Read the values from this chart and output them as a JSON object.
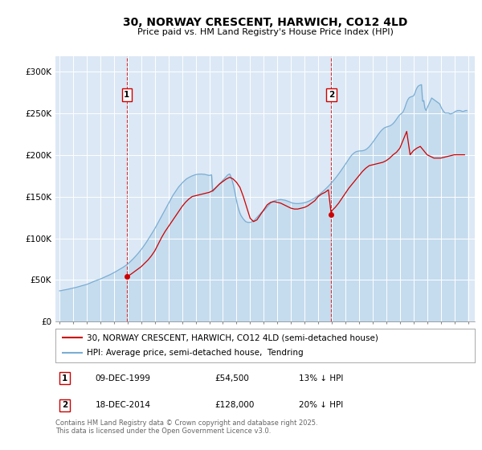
{
  "title": "30, NORWAY CRESCENT, HARWICH, CO12 4LD",
  "subtitle": "Price paid vs. HM Land Registry's House Price Index (HPI)",
  "background_color": "#ffffff",
  "plot_bg_color": "#dce8f5",
  "yticks": [
    0,
    50000,
    100000,
    150000,
    200000,
    250000,
    300000
  ],
  "ytick_labels": [
    "£0",
    "£50K",
    "£100K",
    "£150K",
    "£200K",
    "£250K",
    "£300K"
  ],
  "xlim_start": 1994.7,
  "xlim_end": 2025.5,
  "ylim": [
    0,
    318000
  ],
  "sale1_date": 1999.94,
  "sale1_price": 54500,
  "sale2_date": 2014.96,
  "sale2_price": 128000,
  "vline1_x": 1999.94,
  "vline2_x": 2014.96,
  "red_color": "#cc0000",
  "blue_color": "#7aadd4",
  "blue_fill": "#c5dcee",
  "legend_entry1": "30, NORWAY CRESCENT, HARWICH, CO12 4LD (semi-detached house)",
  "legend_entry2": "HPI: Average price, semi-detached house,  Tendring",
  "footnote1": "Contains HM Land Registry data © Crown copyright and database right 2025.",
  "footnote2": "This data is licensed under the Open Government Licence v3.0.",
  "table_row1": [
    "1",
    "09-DEC-1999",
    "£54,500",
    "13% ↓ HPI"
  ],
  "table_row2": [
    "2",
    "18-DEC-2014",
    "£128,000",
    "20% ↓ HPI"
  ],
  "hpi_years": [
    1995.0,
    1995.083,
    1995.167,
    1995.25,
    1995.333,
    1995.417,
    1995.5,
    1995.583,
    1995.667,
    1995.75,
    1995.833,
    1995.917,
    1996.0,
    1996.083,
    1996.167,
    1996.25,
    1996.333,
    1996.417,
    1996.5,
    1996.583,
    1996.667,
    1996.75,
    1996.833,
    1996.917,
    1997.0,
    1997.083,
    1997.167,
    1997.25,
    1997.333,
    1997.417,
    1997.5,
    1997.583,
    1997.667,
    1997.75,
    1997.833,
    1997.917,
    1998.0,
    1998.083,
    1998.167,
    1998.25,
    1998.333,
    1998.417,
    1998.5,
    1998.583,
    1998.667,
    1998.75,
    1998.833,
    1998.917,
    1999.0,
    1999.083,
    1999.167,
    1999.25,
    1999.333,
    1999.417,
    1999.5,
    1999.583,
    1999.667,
    1999.75,
    1999.833,
    1999.917,
    2000.0,
    2000.083,
    2000.167,
    2000.25,
    2000.333,
    2000.417,
    2000.5,
    2000.583,
    2000.667,
    2000.75,
    2000.833,
    2000.917,
    2001.0,
    2001.083,
    2001.167,
    2001.25,
    2001.333,
    2001.417,
    2001.5,
    2001.583,
    2001.667,
    2001.75,
    2001.833,
    2001.917,
    2002.0,
    2002.083,
    2002.167,
    2002.25,
    2002.333,
    2002.417,
    2002.5,
    2002.583,
    2002.667,
    2002.75,
    2002.833,
    2002.917,
    2003.0,
    2003.083,
    2003.167,
    2003.25,
    2003.333,
    2003.417,
    2003.5,
    2003.583,
    2003.667,
    2003.75,
    2003.833,
    2003.917,
    2004.0,
    2004.083,
    2004.167,
    2004.25,
    2004.333,
    2004.417,
    2004.5,
    2004.583,
    2004.667,
    2004.75,
    2004.833,
    2004.917,
    2005.0,
    2005.083,
    2005.167,
    2005.25,
    2005.333,
    2005.417,
    2005.5,
    2005.583,
    2005.667,
    2005.75,
    2005.833,
    2005.917,
    2006.0,
    2006.083,
    2006.167,
    2006.25,
    2006.333,
    2006.417,
    2006.5,
    2006.583,
    2006.667,
    2006.75,
    2006.833,
    2006.917,
    2007.0,
    2007.083,
    2007.167,
    2007.25,
    2007.333,
    2007.417,
    2007.5,
    2007.583,
    2007.667,
    2007.75,
    2007.833,
    2007.917,
    2008.0,
    2008.083,
    2008.167,
    2008.25,
    2008.333,
    2008.417,
    2008.5,
    2008.583,
    2008.667,
    2008.75,
    2008.833,
    2008.917,
    2009.0,
    2009.083,
    2009.167,
    2009.25,
    2009.333,
    2009.417,
    2009.5,
    2009.583,
    2009.667,
    2009.75,
    2009.833,
    2009.917,
    2010.0,
    2010.083,
    2010.167,
    2010.25,
    2010.333,
    2010.417,
    2010.5,
    2010.583,
    2010.667,
    2010.75,
    2010.833,
    2010.917,
    2011.0,
    2011.083,
    2011.167,
    2011.25,
    2011.333,
    2011.417,
    2011.5,
    2011.583,
    2011.667,
    2011.75,
    2011.833,
    2011.917,
    2012.0,
    2012.083,
    2012.167,
    2012.25,
    2012.333,
    2012.417,
    2012.5,
    2012.583,
    2012.667,
    2012.75,
    2012.833,
    2012.917,
    2013.0,
    2013.083,
    2013.167,
    2013.25,
    2013.333,
    2013.417,
    2013.5,
    2013.583,
    2013.667,
    2013.75,
    2013.833,
    2013.917,
    2014.0,
    2014.083,
    2014.167,
    2014.25,
    2014.333,
    2014.417,
    2014.5,
    2014.583,
    2014.667,
    2014.75,
    2014.833,
    2014.917,
    2015.0,
    2015.083,
    2015.167,
    2015.25,
    2015.333,
    2015.417,
    2015.5,
    2015.583,
    2015.667,
    2015.75,
    2015.833,
    2015.917,
    2016.0,
    2016.083,
    2016.167,
    2016.25,
    2016.333,
    2016.417,
    2016.5,
    2016.583,
    2016.667,
    2016.75,
    2016.833,
    2016.917,
    2017.0,
    2017.083,
    2017.167,
    2017.25,
    2017.333,
    2017.417,
    2017.5,
    2017.583,
    2017.667,
    2017.75,
    2017.833,
    2017.917,
    2018.0,
    2018.083,
    2018.167,
    2018.25,
    2018.333,
    2018.417,
    2018.5,
    2018.583,
    2018.667,
    2018.75,
    2018.833,
    2018.917,
    2019.0,
    2019.083,
    2019.167,
    2019.25,
    2019.333,
    2019.417,
    2019.5,
    2019.583,
    2019.667,
    2019.75,
    2019.833,
    2019.917,
    2020.0,
    2020.083,
    2020.167,
    2020.25,
    2020.333,
    2020.417,
    2020.5,
    2020.583,
    2020.667,
    2020.75,
    2020.833,
    2020.917,
    2021.0,
    2021.083,
    2021.167,
    2021.25,
    2021.333,
    2021.417,
    2021.5,
    2021.583,
    2021.667,
    2021.75,
    2021.833,
    2021.917,
    2022.0,
    2022.083,
    2022.167,
    2022.25,
    2022.333,
    2022.417,
    2022.5,
    2022.583,
    2022.667,
    2022.75,
    2022.833,
    2022.917,
    2023.0,
    2023.083,
    2023.167,
    2023.25,
    2023.333,
    2023.417,
    2023.5,
    2023.583,
    2023.667,
    2023.75,
    2023.833,
    2023.917,
    2024.0,
    2024.083,
    2024.167,
    2024.25,
    2024.333,
    2024.417,
    2024.5,
    2024.583,
    2024.667,
    2024.75,
    2024.833,
    2024.917
  ],
  "hpi_vals": [
    37000,
    37200,
    37400,
    37800,
    38000,
    38200,
    38500,
    38800,
    39000,
    39300,
    39600,
    39900,
    40200,
    40500,
    40900,
    41300,
    41700,
    42100,
    42500,
    42900,
    43300,
    43700,
    44000,
    44300,
    44700,
    45200,
    45800,
    46400,
    47000,
    47600,
    48200,
    48700,
    49200,
    49700,
    50200,
    50700,
    51200,
    51800,
    52400,
    53000,
    53600,
    54200,
    54800,
    55400,
    56000,
    56700,
    57400,
    58100,
    58800,
    59600,
    60400,
    61200,
    62000,
    62800,
    63600,
    64400,
    65200,
    66100,
    67000,
    68000,
    69000,
    70200,
    71500,
    72800,
    74100,
    75500,
    76900,
    78400,
    79900,
    81500,
    83100,
    84800,
    86500,
    88300,
    90200,
    92100,
    94100,
    96200,
    98300,
    100500,
    102700,
    104900,
    107100,
    109300,
    111500,
    114000,
    116500,
    119000,
    121500,
    124000,
    126500,
    129000,
    131500,
    134000,
    136500,
    139000,
    141500,
    144000,
    146500,
    149000,
    151500,
    153500,
    155500,
    157500,
    159500,
    161500,
    163000,
    164500,
    166000,
    167500,
    168800,
    170000,
    171200,
    172000,
    172800,
    173500,
    174200,
    174800,
    175300,
    175800,
    176200,
    176500,
    176700,
    176800,
    177000,
    176900,
    176800,
    176700,
    176500,
    176200,
    175900,
    175600,
    175200,
    175600,
    176000,
    156000,
    157500,
    159000,
    160500,
    162000,
    163500,
    165000,
    166500,
    168000,
    169500,
    171000,
    172500,
    174000,
    175500,
    176500,
    177000,
    174000,
    170000,
    165000,
    159000,
    152000,
    145000,
    139000,
    134000,
    130000,
    127000,
    125000,
    123000,
    121500,
    120000,
    119500,
    119000,
    119000,
    119000,
    119500,
    120000,
    121000,
    122000,
    123500,
    125000,
    126500,
    128000,
    129500,
    131000,
    132000,
    133000,
    134500,
    136000,
    137500,
    139000,
    140500,
    142000,
    143000,
    144000,
    144500,
    145000,
    145500,
    145800,
    146000,
    146200,
    146400,
    146200,
    146000,
    145800,
    145500,
    145000,
    144500,
    144000,
    143500,
    142800,
    142300,
    142000,
    141800,
    141600,
    141500,
    141500,
    141600,
    141700,
    141900,
    142100,
    142300,
    142600,
    143000,
    143500,
    144000,
    144600,
    145200,
    145900,
    146700,
    147500,
    148400,
    149300,
    150300,
    151300,
    152400,
    153500,
    154700,
    155900,
    157100,
    158400,
    159700,
    161000,
    162400,
    163800,
    165300,
    166800,
    168400,
    170000,
    171700,
    173400,
    175200,
    177000,
    178900,
    180800,
    182800,
    184700,
    186700,
    188700,
    190700,
    192800,
    194900,
    196900,
    198700,
    200200,
    201500,
    202600,
    203400,
    204000,
    204300,
    204500,
    204600,
    204700,
    204800,
    205100,
    205600,
    206300,
    207200,
    208400,
    209700,
    211300,
    213000,
    214800,
    216700,
    218700,
    220700,
    222600,
    224500,
    226300,
    228000,
    229500,
    230800,
    231900,
    232700,
    233200,
    233600,
    234000,
    234500,
    235200,
    236200,
    237400,
    238900,
    240600,
    242500,
    244500,
    246500,
    248000,
    249000,
    250000,
    252000,
    255000,
    259000,
    263000,
    266000,
    268000,
    269000,
    269500,
    270000,
    270500,
    273000,
    277000,
    280000,
    282000,
    283000,
    283500,
    284000,
    264000,
    265000,
    256000,
    253000,
    256000,
    259000,
    262000,
    265000,
    268000,
    267000,
    266000,
    265000,
    264000,
    263000,
    262000,
    261000,
    258000,
    255000,
    253000,
    251000,
    250000,
    250000,
    250000,
    250000,
    249000,
    249000,
    249500,
    250000,
    251000,
    252000,
    252500,
    253000,
    253000,
    253000,
    252500,
    252000,
    252000,
    252500,
    253000,
    253000
  ],
  "price_years": [
    1999.94,
    2000.0,
    2000.25,
    2000.5,
    2000.75,
    2001.0,
    2001.25,
    2001.5,
    2001.75,
    2002.0,
    2002.25,
    2002.5,
    2002.75,
    2003.0,
    2003.25,
    2003.5,
    2003.75,
    2004.0,
    2004.25,
    2004.5,
    2004.75,
    2005.0,
    2005.25,
    2005.5,
    2005.75,
    2006.0,
    2006.25,
    2006.5,
    2006.75,
    2007.0,
    2007.25,
    2007.5,
    2007.75,
    2008.0,
    2008.25,
    2008.5,
    2008.75,
    2009.0,
    2009.25,
    2009.5,
    2009.75,
    2010.0,
    2010.25,
    2010.5,
    2010.75,
    2011.0,
    2011.25,
    2011.5,
    2011.75,
    2012.0,
    2012.25,
    2012.5,
    2012.75,
    2013.0,
    2013.25,
    2013.5,
    2013.75,
    2014.0,
    2014.25,
    2014.5,
    2014.75,
    2014.96,
    2015.0,
    2015.25,
    2015.5,
    2015.75,
    2016.0,
    2016.25,
    2016.5,
    2016.75,
    2017.0,
    2017.25,
    2017.5,
    2017.75,
    2018.0,
    2018.25,
    2018.5,
    2018.75,
    2019.0,
    2019.25,
    2019.5,
    2019.75,
    2020.0,
    2020.25,
    2020.5,
    2020.75,
    2021.0,
    2021.25,
    2021.5,
    2021.75,
    2022.0,
    2022.25,
    2022.5,
    2022.75,
    2023.0,
    2023.25,
    2023.5,
    2023.75,
    2024.0,
    2024.25,
    2024.5,
    2024.75
  ],
  "price_vals": [
    54500,
    54500,
    57000,
    60000,
    63000,
    66000,
    70000,
    74000,
    79000,
    85000,
    93000,
    101000,
    108000,
    114000,
    120000,
    126000,
    132000,
    138000,
    143000,
    147000,
    150000,
    151000,
    152000,
    153000,
    154000,
    155000,
    157000,
    161000,
    165000,
    168000,
    171000,
    173000,
    171000,
    167000,
    161000,
    150000,
    137000,
    124000,
    120000,
    122000,
    128000,
    134000,
    140000,
    143000,
    144000,
    143000,
    142000,
    140000,
    138000,
    136000,
    135000,
    135000,
    136000,
    137000,
    139000,
    142000,
    145000,
    150000,
    153000,
    155000,
    158000,
    128000,
    133000,
    137000,
    142000,
    148000,
    154000,
    160000,
    165000,
    170000,
    175000,
    180000,
    184000,
    187000,
    188000,
    189000,
    190000,
    191000,
    193000,
    196000,
    200000,
    203000,
    208000,
    218000,
    228000,
    200000,
    205000,
    208000,
    210000,
    205000,
    200000,
    198000,
    196000,
    196000,
    196000,
    197000,
    198000,
    199000,
    200000,
    200000,
    200000,
    200000
  ]
}
